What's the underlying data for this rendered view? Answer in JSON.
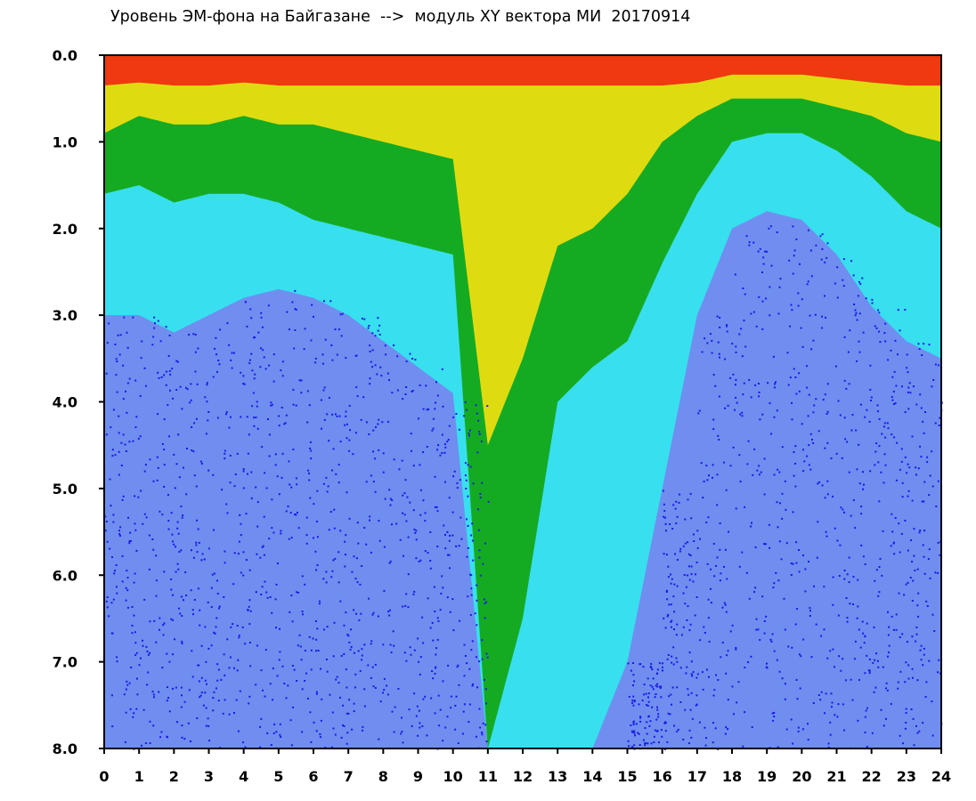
{
  "chart_data": {
    "type": "heatmap",
    "title": "Уровень ЭМ-фона на Байгазане  -->  модуль XY вектора МИ  20170914",
    "xlabel": "",
    "ylabel": "",
    "xlim": [
      0,
      24
    ],
    "ylim": [
      0,
      8
    ],
    "y_axis_inverted": true,
    "x_ticks": [
      "0",
      "1",
      "2",
      "3",
      "4",
      "5",
      "6",
      "7",
      "8",
      "9",
      "10",
      "11",
      "12",
      "13",
      "14",
      "15",
      "16",
      "17",
      "18",
      "19",
      "20",
      "21",
      "22",
      "23",
      "24"
    ],
    "y_ticks": [
      "0.0",
      "1.0",
      "2.0",
      "3.0",
      "4.0",
      "5.0",
      "6.0",
      "7.0",
      "8.0"
    ],
    "colorscale": [
      "#1a1ae6",
      "#6f8ef0",
      "#33e6ef",
      "#11a611",
      "#f0e010",
      "#f02a10"
    ],
    "grid": false,
    "hourly_profile": [
      {
        "hour": 0,
        "yellow_to": 0.9,
        "green_to": 1.6,
        "cyan_to": 3.0
      },
      {
        "hour": 1,
        "yellow_to": 0.7,
        "green_to": 1.5,
        "cyan_to": 3.0
      },
      {
        "hour": 2,
        "yellow_to": 0.8,
        "green_to": 1.7,
        "cyan_to": 3.2
      },
      {
        "hour": 3,
        "yellow_to": 0.8,
        "green_to": 1.6,
        "cyan_to": 3.0
      },
      {
        "hour": 4,
        "yellow_to": 0.7,
        "green_to": 1.6,
        "cyan_to": 2.8
      },
      {
        "hour": 5,
        "yellow_to": 0.8,
        "green_to": 1.7,
        "cyan_to": 2.7
      },
      {
        "hour": 6,
        "yellow_to": 0.8,
        "green_to": 1.9,
        "cyan_to": 2.8
      },
      {
        "hour": 7,
        "yellow_to": 0.9,
        "green_to": 2.0,
        "cyan_to": 3.0
      },
      {
        "hour": 8,
        "yellow_to": 1.0,
        "green_to": 2.1,
        "cyan_to": 3.3
      },
      {
        "hour": 9,
        "yellow_to": 1.1,
        "green_to": 2.2,
        "cyan_to": 3.6
      },
      {
        "hour": 10,
        "yellow_to": 1.2,
        "green_to": 2.3,
        "cyan_to": 3.9
      },
      {
        "hour": 11,
        "yellow_to": 4.5,
        "green_to": 8.0,
        "cyan_to": 8.0
      },
      {
        "hour": 12,
        "yellow_to": 3.5,
        "green_to": 6.5,
        "cyan_to": 8.0
      },
      {
        "hour": 13,
        "yellow_to": 2.2,
        "green_to": 4.0,
        "cyan_to": 8.0
      },
      {
        "hour": 14,
        "yellow_to": 2.0,
        "green_to": 3.6,
        "cyan_to": 8.0
      },
      {
        "hour": 15,
        "yellow_to": 1.6,
        "green_to": 3.3,
        "cyan_to": 7.0
      },
      {
        "hour": 16,
        "yellow_to": 1.0,
        "green_to": 2.4,
        "cyan_to": 5.0
      },
      {
        "hour": 17,
        "yellow_to": 0.7,
        "green_to": 1.6,
        "cyan_to": 3.0
      },
      {
        "hour": 18,
        "yellow_to": 0.5,
        "green_to": 1.0,
        "cyan_to": 2.0
      },
      {
        "hour": 19,
        "yellow_to": 0.5,
        "green_to": 0.9,
        "cyan_to": 1.8
      },
      {
        "hour": 20,
        "yellow_to": 0.5,
        "green_to": 0.9,
        "cyan_to": 1.9
      },
      {
        "hour": 21,
        "yellow_to": 0.6,
        "green_to": 1.1,
        "cyan_to": 2.3
      },
      {
        "hour": 22,
        "yellow_to": 0.7,
        "green_to": 1.4,
        "cyan_to": 2.9
      },
      {
        "hour": 23,
        "yellow_to": 0.9,
        "green_to": 1.8,
        "cyan_to": 3.3
      },
      {
        "hour": 24,
        "yellow_to": 1.0,
        "green_to": 2.0,
        "cyan_to": 3.5
      }
    ]
  }
}
